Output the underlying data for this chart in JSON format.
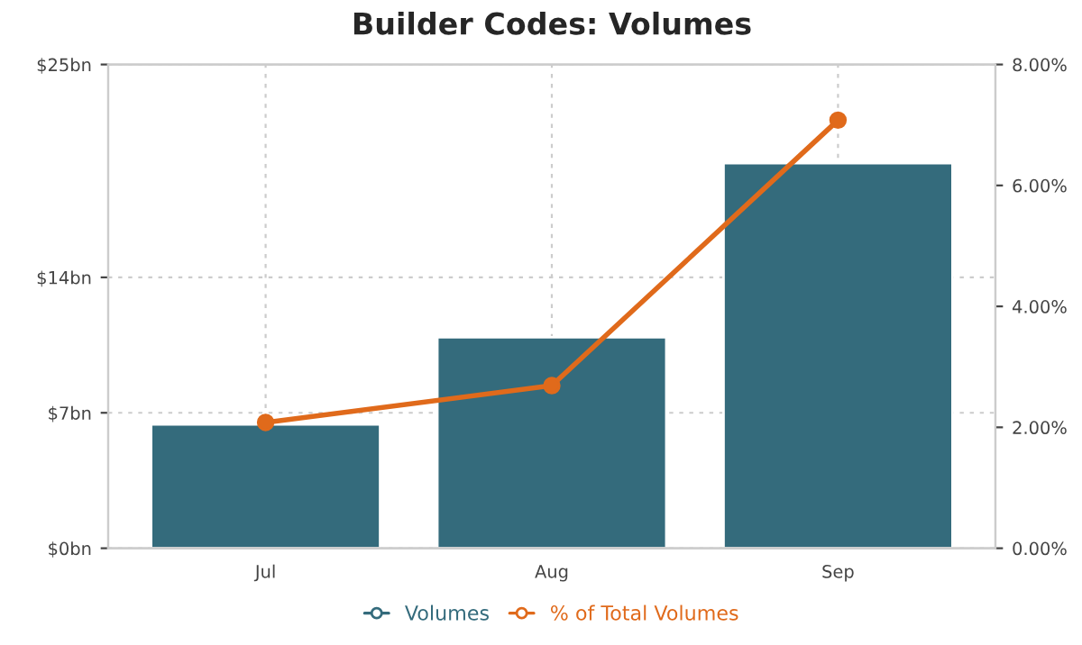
{
  "chart_data": {
    "type": "bar",
    "title": "Builder Codes: Volumes",
    "categories": [
      "Jul",
      "Aug",
      "Sep"
    ],
    "series": [
      {
        "name": "Volumes",
        "color": "#346b7c",
        "values": [
          6.4,
          10.9,
          19.9
        ]
      },
      {
        "name": "% of Total Volumes",
        "type": "line",
        "axis": "y2",
        "color": "#e06a1b",
        "values": [
          2.08,
          2.69,
          7.08
        ]
      }
    ],
    "ylim": [
      0,
      25
    ],
    "yticks": [
      {
        "value": 0,
        "label": "$0bn"
      },
      {
        "value": 7,
        "label": "$7bn"
      },
      {
        "value": 14,
        "label": "$14bn"
      },
      {
        "value": 25,
        "label": "$25bn"
      }
    ],
    "y2lim": [
      0,
      8
    ],
    "y2ticks": [
      {
        "value": 0,
        "label": "0.00%"
      },
      {
        "value": 2,
        "label": "2.00%"
      },
      {
        "value": 4,
        "label": "4.00%"
      },
      {
        "value": 6,
        "label": "6.00%"
      },
      {
        "value": 8,
        "label": "8.00%"
      }
    ],
    "grid": true,
    "legend": "bottom",
    "marker": "circle",
    "line_style": "solid"
  }
}
